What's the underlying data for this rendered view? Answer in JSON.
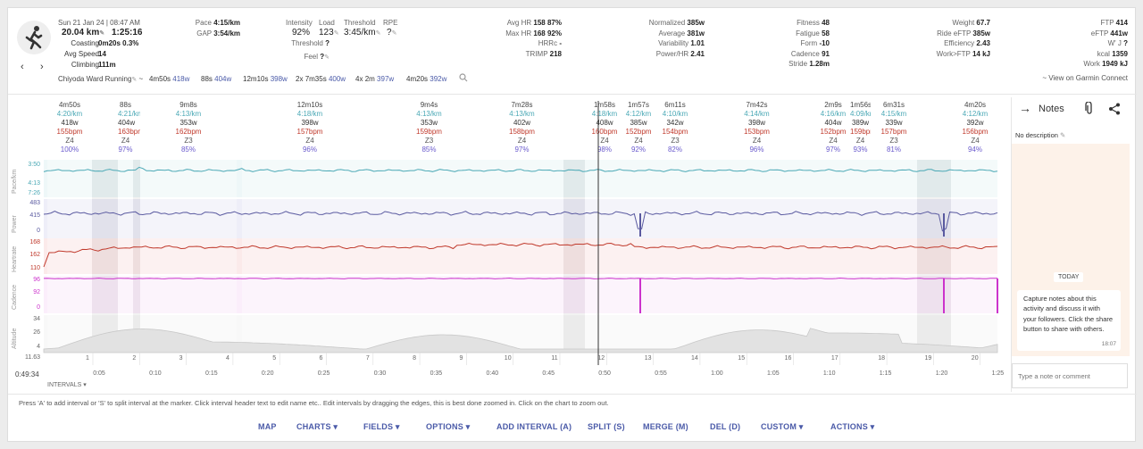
{
  "header": {
    "date": "Sun 21 Jan 24",
    "time": "08:47 AM",
    "distance": "20.04 km",
    "duration": "1:25:16",
    "coasting_label": "Coasting",
    "coasting_value": "0m20s",
    "coasting_pct": "0.3%",
    "avg_speed_label": "Avg Speed",
    "avg_speed_value": "14",
    "climbing_label": "Climbing",
    "climbing_value": "111m",
    "activity_name": "Chiyoda Ward Running",
    "interval_summary": [
      {
        "label": "4m50s",
        "value": "418w"
      },
      {
        "label": "88s",
        "value": "404w"
      },
      {
        "label": "12m10s",
        "value": "398w"
      },
      {
        "label": "2x",
        "mid": "7m35s",
        "value": "400w"
      },
      {
        "label": "4x",
        "mid": "2m",
        "value": "397w"
      },
      {
        "label": "4m20s",
        "value": "392w"
      }
    ],
    "col2": {
      "pace_label": "Pace",
      "pace_value": "4:15/km",
      "gap_label": "GAP",
      "gap_value": "3:54/km",
      "intensity_label": "Intensity",
      "intensity_value": "92%",
      "load_label": "Load",
      "load_value": "123",
      "threshold_label": "Threshold",
      "threshold_pace": "3:45/km",
      "threshold2_label": "Threshold",
      "threshold2_value": "?",
      "rpe_label": "RPE",
      "rpe_value": "?",
      "feel_label": "Feel",
      "feel_value": "?"
    },
    "col3": [
      {
        "label": "Avg HR",
        "value": "158",
        "pct": "87%"
      },
      {
        "label": "Max HR",
        "value": "168",
        "pct": "92%"
      },
      {
        "label": "HRRc",
        "value": "-",
        "pct": ""
      },
      {
        "label": "TRIMP",
        "value": "218",
        "pct": ""
      }
    ],
    "col4": [
      {
        "label": "Normalized",
        "value": "385w"
      },
      {
        "label": "Average",
        "value": "381w"
      },
      {
        "label": "Variability",
        "value": "1.01"
      },
      {
        "label": "Power/HR",
        "value": "2.41"
      }
    ],
    "col5": [
      {
        "label": "Fitness",
        "value": "48"
      },
      {
        "label": "Fatigue",
        "value": "58"
      },
      {
        "label": "Form",
        "value": "-10"
      },
      {
        "label": "Cadence",
        "value": "91"
      },
      {
        "label": "Stride",
        "value": "1.28m"
      }
    ],
    "col6": [
      {
        "label": "Weight",
        "value": "67.7"
      },
      {
        "label": "Ride eFTP",
        "value": "385w"
      },
      {
        "label": "Efficiency",
        "value": "2.43"
      },
      {
        "label": "Work>FTP",
        "value": "14 kJ"
      }
    ],
    "col7": [
      {
        "label": "FTP",
        "value": "414"
      },
      {
        "label": "eFTP",
        "value": "441w"
      },
      {
        "label": "W' J",
        "value": "?"
      },
      {
        "label": "kcal",
        "value": "1359"
      },
      {
        "label": "Work",
        "value": "1949 kJ"
      }
    ],
    "garmin_link": "~ View on Garmin Connect"
  },
  "intervals": [
    {
      "dur": "4m50s",
      "pace": "4:20/km",
      "watts": "418w",
      "bpm": "155bpm",
      "zone": "Z4",
      "pct": "100%"
    },
    {
      "dur": "88s",
      "pace": "4:21/km",
      "watts": "404w",
      "bpm": "163bpm",
      "zone": "Z4",
      "pct": "97%"
    },
    {
      "dur": "9m8s",
      "pace": "4:13/km",
      "watts": "353w",
      "bpm": "162bpm",
      "zone": "Z3",
      "pct": "85%"
    },
    {
      "dur": "12m10s",
      "pace": "4:18/km",
      "watts": "398w",
      "bpm": "157bpm",
      "zone": "Z4",
      "pct": "96%"
    },
    {
      "dur": "9m4s",
      "pace": "4:13/km",
      "watts": "353w",
      "bpm": "159bpm",
      "zone": "Z3",
      "pct": "85%"
    },
    {
      "dur": "7m28s",
      "pace": "4:13/km",
      "watts": "402w",
      "bpm": "158bpm",
      "zone": "Z4",
      "pct": "97%"
    },
    {
      "dur": "1m58s",
      "pace": "4:18/km",
      "watts": "408w",
      "bpm": "160bpm",
      "zone": "Z4",
      "pct": "98%"
    },
    {
      "dur": "1m57s",
      "pace": "4:12/km",
      "watts": "385w",
      "bpm": "152bpm",
      "zone": "Z4",
      "pct": "92%"
    },
    {
      "dur": "6m11s",
      "pace": "4:10/km",
      "watts": "342w",
      "bpm": "154bpm",
      "zone": "Z3",
      "pct": "82%"
    },
    {
      "dur": "7m42s",
      "pace": "4:14/km",
      "watts": "398w",
      "bpm": "153bpm",
      "zone": "Z4",
      "pct": "96%"
    },
    {
      "dur": "2m9s",
      "pace": "4:16/km",
      "watts": "404w",
      "bpm": "152bpm",
      "zone": "Z4",
      "pct": "97%"
    },
    {
      "dur": "1m56s",
      "pace": "4:09/km",
      "watts": "389w",
      "bpm": "159bpm",
      "zone": "Z4",
      "pct": "93%"
    },
    {
      "dur": "6m31s",
      "pace": "4:15/km",
      "watts": "339w",
      "bpm": "157bpm",
      "zone": "Z3",
      "pct": "81%"
    },
    {
      "dur": "4m20s",
      "pace": "4:12/km",
      "watts": "392w",
      "bpm": "156bpm",
      "zone": "Z4",
      "pct": "94%"
    }
  ],
  "charts": {
    "pace": {
      "label": "Pace/km",
      "ticks": [
        "3:50",
        "4:13",
        "7:26"
      ]
    },
    "power": {
      "label": "Power",
      "ticks": [
        "483",
        "415",
        "0"
      ]
    },
    "hr": {
      "label": "Heartrate",
      "ticks": [
        "168",
        "162",
        "110"
      ]
    },
    "cadence": {
      "label": "Cadence",
      "ticks": [
        "96",
        "92",
        "0"
      ]
    },
    "altitude": {
      "label": "Altitude",
      "ticks": [
        "34",
        "26",
        "4",
        "11.63"
      ]
    },
    "numbers": [
      "1",
      "2",
      "3",
      "4",
      "5",
      "6",
      "7",
      "8",
      "9",
      "10",
      "11",
      "12",
      "13",
      "14",
      "15",
      "16",
      "17",
      "18",
      "19",
      "20"
    ],
    "start_time": "0:49:34",
    "xticks": [
      "0:05",
      "0:10",
      "0:15",
      "0:20",
      "0:25",
      "0:30",
      "0:35",
      "0:40",
      "0:45",
      "0:50",
      "0:55",
      "1:00",
      "1:05",
      "1:10",
      "1:15",
      "1:20",
      "1:25"
    ],
    "intervals_toggle": "INTERVALS"
  },
  "colors": {
    "pace": "#4aa8b5",
    "power": "#5a5aa0",
    "hr": "#c0392b",
    "cadence": "#cc33cc",
    "altitude": "#bbbbbb"
  },
  "notes": {
    "title": "Notes",
    "no_description": "No description",
    "today": "TODAY",
    "message": "Capture notes about this activity and discuss it with your followers. Click the share button to share with others.",
    "message_time": "18:07",
    "input_placeholder": "Type a note or comment"
  },
  "help_text": "Press 'A' to add interval or 'S' to split interval at the marker. Click interval header text to edit name etc.. Edit intervals by dragging the edges, this is best done zoomed in. Click on the chart to zoom out.",
  "menu": {
    "map": "MAP",
    "charts": "CHARTS",
    "fields": "FIELDS",
    "options": "OPTIONS",
    "add_interval": "ADD INTERVAL (A)",
    "split": "SPLIT (S)",
    "merge": "MERGE (M)",
    "del": "DEL (D)",
    "custom": "CUSTOM",
    "actions": "ACTIONS"
  }
}
